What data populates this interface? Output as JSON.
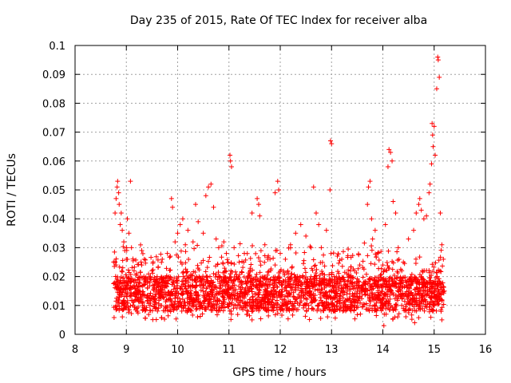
{
  "chart_data": {
    "type": "scatter",
    "title": "Day 235 of 2015, Rate Of TEC Index for receiver alba",
    "xlabel": "GPS time / hours",
    "ylabel": "ROTI / TECUs",
    "xlim": [
      8,
      16
    ],
    "ylim": [
      0,
      0.1
    ],
    "xticks": [
      "8",
      "9",
      "10",
      "11",
      "12",
      "13",
      "14",
      "15",
      "16"
    ],
    "yticks": [
      "0",
      "0.01",
      "0.02",
      "0.03",
      "0.04",
      "0.05",
      "0.06",
      "0.07",
      "0.08",
      "0.09",
      "0.1"
    ],
    "grid": true,
    "marker": "plus",
    "color": "#ff0000",
    "x_range_of_data": [
      8.75,
      15.2
    ],
    "series": [
      {
        "points": [
          [
            8.78,
            0.042
          ],
          [
            8.8,
            0.047
          ],
          [
            8.82,
            0.051
          ],
          [
            8.83,
            0.053
          ],
          [
            8.85,
            0.049
          ],
          [
            8.86,
            0.045
          ],
          [
            8.88,
            0.038
          ],
          [
            8.9,
            0.042
          ],
          [
            8.92,
            0.036
          ],
          [
            8.95,
            0.032
          ],
          [
            8.97,
            0.029
          ],
          [
            9.0,
            0.026
          ],
          [
            9.02,
            0.04
          ],
          [
            9.05,
            0.035
          ],
          [
            9.08,
            0.053
          ],
          [
            9.1,
            0.03
          ],
          [
            9.15,
            0.022
          ],
          [
            9.2,
            0.021
          ],
          [
            9.3,
            0.029
          ],
          [
            9.35,
            0.026
          ],
          [
            9.5,
            0.022
          ],
          [
            9.6,
            0.02
          ],
          [
            9.7,
            0.026
          ],
          [
            9.8,
            0.028
          ],
          [
            9.88,
            0.047
          ],
          [
            9.9,
            0.044
          ],
          [
            9.95,
            0.032
          ],
          [
            10.0,
            0.035
          ],
          [
            10.05,
            0.038
          ],
          [
            10.1,
            0.04
          ],
          [
            10.15,
            0.031
          ],
          [
            10.2,
            0.036
          ],
          [
            10.3,
            0.032
          ],
          [
            10.35,
            0.045
          ],
          [
            10.4,
            0.039
          ],
          [
            10.5,
            0.035
          ],
          [
            10.55,
            0.048
          ],
          [
            10.6,
            0.051
          ],
          [
            10.65,
            0.052
          ],
          [
            10.7,
            0.044
          ],
          [
            10.75,
            0.033
          ],
          [
            10.8,
            0.03
          ],
          [
            10.9,
            0.032
          ],
          [
            10.95,
            0.028
          ],
          [
            11.02,
            0.062
          ],
          [
            11.03,
            0.06
          ],
          [
            11.05,
            0.058
          ],
          [
            11.1,
            0.03
          ],
          [
            11.2,
            0.025
          ],
          [
            11.3,
            0.028
          ],
          [
            11.45,
            0.042
          ],
          [
            11.55,
            0.047
          ],
          [
            11.58,
            0.045
          ],
          [
            11.6,
            0.041
          ],
          [
            11.7,
            0.031
          ],
          [
            11.8,
            0.026
          ],
          [
            11.9,
            0.049
          ],
          [
            11.95,
            0.053
          ],
          [
            11.97,
            0.05
          ],
          [
            12.0,
            0.028
          ],
          [
            12.1,
            0.026
          ],
          [
            12.2,
            0.031
          ],
          [
            12.3,
            0.035
          ],
          [
            12.4,
            0.038
          ],
          [
            12.5,
            0.034
          ],
          [
            12.6,
            0.03
          ],
          [
            12.65,
            0.051
          ],
          [
            12.7,
            0.042
          ],
          [
            12.75,
            0.038
          ],
          [
            12.8,
            0.03
          ],
          [
            12.9,
            0.036
          ],
          [
            12.97,
            0.05
          ],
          [
            12.98,
            0.067
          ],
          [
            13.0,
            0.066
          ],
          [
            13.05,
            0.02
          ],
          [
            13.2,
            0.026
          ],
          [
            13.3,
            0.021
          ],
          [
            13.45,
            0.022
          ],
          [
            13.55,
            0.024
          ],
          [
            13.7,
            0.045
          ],
          [
            13.72,
            0.051
          ],
          [
            13.75,
            0.053
          ],
          [
            13.78,
            0.04
          ],
          [
            13.8,
            0.033
          ],
          [
            13.85,
            0.036
          ],
          [
            13.9,
            0.028
          ],
          [
            14.0,
            0.024
          ],
          [
            14.05,
            0.038
          ],
          [
            14.1,
            0.058
          ],
          [
            14.12,
            0.064
          ],
          [
            14.15,
            0.063
          ],
          [
            14.18,
            0.06
          ],
          [
            14.2,
            0.046
          ],
          [
            14.25,
            0.042
          ],
          [
            14.3,
            0.03
          ],
          [
            14.4,
            0.025
          ],
          [
            14.5,
            0.033
          ],
          [
            14.6,
            0.036
          ],
          [
            14.65,
            0.042
          ],
          [
            14.7,
            0.045
          ],
          [
            14.72,
            0.047
          ],
          [
            14.75,
            0.043
          ],
          [
            14.8,
            0.04
          ],
          [
            14.85,
            0.041
          ],
          [
            14.9,
            0.049
          ],
          [
            14.92,
            0.052
          ],
          [
            14.95,
            0.059
          ],
          [
            14.96,
            0.073
          ],
          [
            14.97,
            0.069
          ],
          [
            14.98,
            0.065
          ],
          [
            15.0,
            0.072
          ],
          [
            15.02,
            0.062
          ],
          [
            15.05,
            0.085
          ],
          [
            15.07,
            0.096
          ],
          [
            15.08,
            0.095
          ],
          [
            15.1,
            0.089
          ],
          [
            15.12,
            0.042
          ],
          [
            15.15,
            0.031
          ],
          [
            15.18,
            0.026
          ],
          [
            15.2,
            0.015
          ],
          [
            8.8,
            0.024
          ],
          [
            9.3,
            0.024
          ],
          [
            14.02,
            0.003
          ],
          [
            14.62,
            0.004
          ],
          [
            11.45,
            0.005
          ],
          [
            15.15,
            0.005
          ]
        ]
      }
    ]
  }
}
